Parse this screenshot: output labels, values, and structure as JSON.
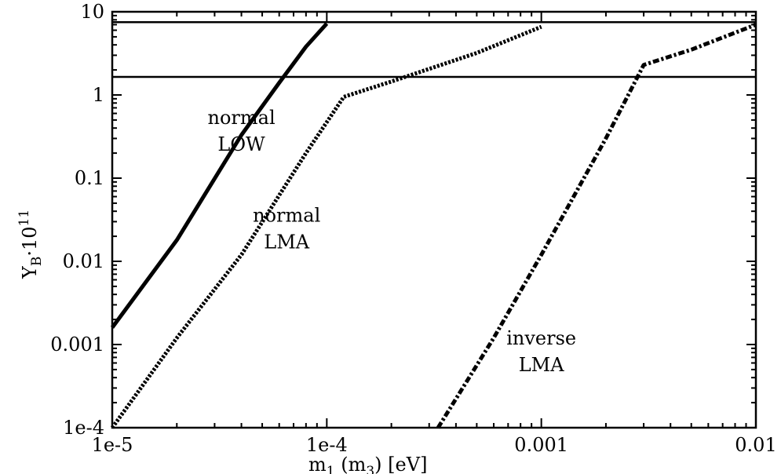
{
  "chart_data": {
    "type": "line",
    "x_scale": "log",
    "y_scale": "log",
    "xlim": [
      1e-05,
      0.01
    ],
    "ylim": [
      0.0001,
      10
    ],
    "xlabel": "m1 (m3) [eV]",
    "xlabel_parts": {
      "m": "m",
      "sub1": "1",
      "mid": " (m",
      "sub2": "3",
      "end": ") [eV]"
    },
    "ylabel": "YB·10^11",
    "ylabel_parts": {
      "y": "Y",
      "sub": "B",
      "mid": "·10",
      "sup": "11"
    },
    "x_tick_labels": [
      {
        "value": 1e-05,
        "label": "1e-5"
      },
      {
        "value": 0.0001,
        "label": "1e-4"
      },
      {
        "value": 0.001,
        "label": "0.001"
      },
      {
        "value": 0.01,
        "label": "0.01"
      }
    ],
    "y_tick_labels": [
      {
        "value": 10,
        "label": "10"
      },
      {
        "value": 1,
        "label": "1"
      },
      {
        "value": 0.1,
        "label": "0.1"
      },
      {
        "value": 0.01,
        "label": "0.01"
      },
      {
        "value": 0.001,
        "label": "0.001"
      },
      {
        "value": 0.0001,
        "label": "1e-4"
      }
    ],
    "horizontal_lines": [
      7.5,
      1.65
    ],
    "series": [
      {
        "style": "solid",
        "x": [
          1e-05,
          2e-05,
          4e-05,
          6e-05,
          8e-05,
          0.0001
        ],
        "y": [
          0.0016,
          0.018,
          0.33,
          1.4,
          3.8,
          7.2
        ]
      },
      {
        "style": "dotted",
        "x": [
          1e-05,
          2e-05,
          4e-05,
          8e-05,
          0.00012,
          0.0002,
          0.0005,
          0.001
        ],
        "y": [
          0.0001,
          0.0012,
          0.012,
          0.2,
          0.95,
          1.45,
          3.2,
          6.6
        ]
      },
      {
        "style": "dashdot",
        "x": [
          0.00033,
          0.0006,
          0.001,
          0.002,
          0.003,
          0.005,
          0.01
        ],
        "y": [
          0.0001,
          0.0012,
          0.012,
          0.3,
          2.3,
          3.5,
          7.0
        ]
      }
    ],
    "annotations": [
      {
        "lines": [
          "normal",
          "LOW"
        ],
        "x": 4e-05,
        "y": 0.45
      },
      {
        "lines": [
          "normal",
          "LMA"
        ],
        "x": 6.5e-05,
        "y": 0.03
      },
      {
        "lines": [
          "inverse",
          "LMA"
        ],
        "x": 0.001,
        "y": 0.001
      }
    ]
  }
}
